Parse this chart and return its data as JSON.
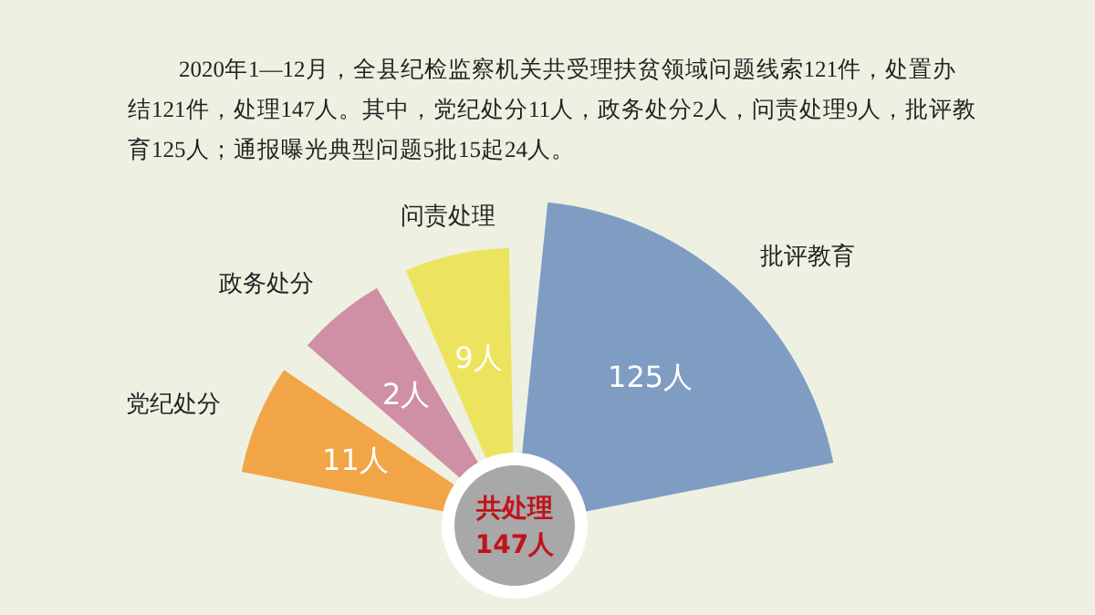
{
  "chart_data": {
    "type": "other",
    "title": "2020年1—12月，全县纪检监察机关共受理扶贫领域问题线索121件，处置办结121件，处理147人。其中，党纪处分11人，政务处分2人，问责处理9人，批评教育125人；通报曝光典型问题5批15起24人。",
    "categories": [
      "党纪处分",
      "政务处分",
      "问责处理",
      "批评教育"
    ],
    "values": [
      11,
      2,
      9,
      125
    ],
    "colors": [
      "#f2a546",
      "#cf8fa4",
      "#ece45e",
      "#7f9dc3"
    ],
    "value_labels": [
      "11人",
      "2人",
      "9人",
      "125人"
    ],
    "annotations": [
      "共处理",
      "147人"
    ]
  }
}
